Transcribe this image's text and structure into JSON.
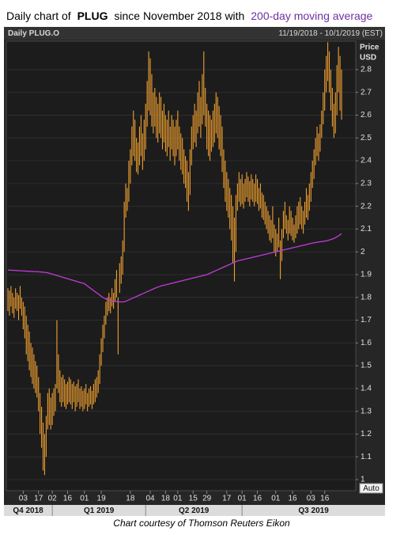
{
  "chart_data": {
    "type": "hilo",
    "title": {
      "lead": "Daily chart of",
      "ticker": "PLUG",
      "middle": "since November 2018 with",
      "highlight": "200-day moving average"
    },
    "title_highlight_color": "#7030a0",
    "header_left": "Daily PLUG.O",
    "header_right": "11/19/2018 - 10/1/2019 (EST)",
    "y_label": "Price",
    "y_unit": "USD",
    "button": "Auto",
    "quarters": [
      "Q4 2018",
      "Q1 2019",
      "Q2 2019",
      "Q3 2019"
    ],
    "footer": "Chart courtesy of Thomson Reuters Eikon",
    "bar_color": "#f0a030",
    "ma_color": "#c03cd8",
    "grid": true,
    "ylim": [
      1,
      2.925
    ],
    "yticks": [
      1,
      1.1,
      1.2,
      1.3,
      1.4,
      1.5,
      1.6,
      1.7,
      1.8,
      1.9,
      2,
      2.1,
      2.2,
      2.3,
      2.4,
      2.5,
      2.6,
      2.7,
      2.8
    ],
    "categories": [
      null,
      null,
      null,
      null,
      null,
      null,
      null,
      null,
      null,
      null,
      "03",
      null,
      null,
      null,
      null,
      null,
      null,
      null,
      null,
      null,
      "17",
      null,
      null,
      null,
      null,
      null,
      null,
      null,
      null,
      "02",
      null,
      null,
      null,
      null,
      null,
      null,
      null,
      null,
      null,
      "16",
      null,
      null,
      null,
      null,
      null,
      null,
      null,
      null,
      null,
      null,
      "01",
      null,
      null,
      null,
      null,
      null,
      null,
      null,
      null,
      null,
      null,
      "19",
      null,
      null,
      null,
      null,
      null,
      null,
      null,
      null,
      null,
      null,
      null,
      null,
      null,
      null,
      null,
      null,
      null,
      null,
      "18",
      null,
      null,
      null,
      null,
      null,
      null,
      null,
      null,
      null,
      null,
      null,
      null,
      "04",
      null,
      null,
      null,
      null,
      null,
      null,
      null,
      null,
      null,
      "18",
      null,
      null,
      null,
      null,
      null,
      null,
      null,
      "01",
      null,
      null,
      null,
      null,
      null,
      null,
      null,
      null,
      null,
      "15",
      null,
      null,
      null,
      null,
      null,
      null,
      null,
      null,
      "29",
      null,
      null,
      null,
      null,
      null,
      null,
      null,
      null,
      null,
      null,
      null,
      null,
      "17",
      null,
      null,
      null,
      null,
      null,
      null,
      null,
      null,
      null,
      "01",
      null,
      null,
      null,
      null,
      null,
      null,
      null,
      null,
      null,
      "16",
      null,
      null,
      null,
      null,
      null,
      null,
      null,
      null,
      null,
      null,
      null,
      "01",
      null,
      null,
      null,
      null,
      null,
      null,
      null,
      null,
      null,
      null,
      "16",
      null,
      null,
      null,
      null,
      null,
      null,
      null,
      null,
      null,
      null,
      null,
      "03",
      null,
      null,
      null,
      null,
      null,
      null,
      null,
      null,
      "16",
      null,
      null,
      null,
      null,
      null,
      null,
      null,
      null,
      null,
      null,
      null
    ],
    "high": [
      1.84,
      1.83,
      1.85,
      1.82,
      1.8,
      1.84,
      1.82,
      1.81,
      1.85,
      1.8,
      1.78,
      1.76,
      1.72,
      1.68,
      1.65,
      1.6,
      1.58,
      1.55,
      1.52,
      1.5,
      1.45,
      1.38,
      1.32,
      1.25,
      1.2,
      1.28,
      1.38,
      1.4,
      1.36,
      1.38,
      1.4,
      1.42,
      1.7,
      1.55,
      1.48,
      1.45,
      1.46,
      1.44,
      1.42,
      1.43,
      1.45,
      1.44,
      1.42,
      1.43,
      1.41,
      1.42,
      1.44,
      1.4,
      1.41,
      1.39,
      1.4,
      1.42,
      1.38,
      1.4,
      1.41,
      1.39,
      1.42,
      1.44,
      1.45,
      1.48,
      1.55,
      1.62,
      1.68,
      1.72,
      1.78,
      1.8,
      1.82,
      1.8,
      1.84,
      1.82,
      1.88,
      1.92,
      1.8,
      1.95,
      1.98,
      2.05,
      2.22,
      2.3,
      2.28,
      2.4,
      2.45,
      2.55,
      2.62,
      2.58,
      2.5,
      2.48,
      2.55,
      2.6,
      2.52,
      2.58,
      2.65,
      2.75,
      2.88,
      2.85,
      2.78,
      2.7,
      2.72,
      2.68,
      2.65,
      2.7,
      2.68,
      2.62,
      2.65,
      2.6,
      2.58,
      2.62,
      2.55,
      2.6,
      2.58,
      2.55,
      2.58,
      2.62,
      2.55,
      2.52,
      2.5,
      2.45,
      2.42,
      2.4,
      2.35,
      2.45,
      2.55,
      2.6,
      2.65,
      2.62,
      2.7,
      2.75,
      2.68,
      2.78,
      2.88,
      2.72,
      2.65,
      2.62,
      2.6,
      2.58,
      2.62,
      2.65,
      2.7,
      2.68,
      2.64,
      2.6,
      2.55,
      2.45,
      2.4,
      2.35,
      2.32,
      2.28,
      2.25,
      2.2,
      2.15,
      2.25,
      2.3,
      2.35,
      2.32,
      2.34,
      2.3,
      2.32,
      2.35,
      2.33,
      2.31,
      2.34,
      2.32,
      2.3,
      2.34,
      2.32,
      2.28,
      2.3,
      2.26,
      2.25,
      2.22,
      2.2,
      2.18,
      2.16,
      2.14,
      2.2,
      2.12,
      2.1,
      2.08,
      2.15,
      2.05,
      2.1,
      2.18,
      2.22,
      2.16,
      2.14,
      2.2,
      2.18,
      2.15,
      2.12,
      2.16,
      2.2,
      2.22,
      2.24,
      2.2,
      2.18,
      2.22,
      2.28,
      2.25,
      2.3,
      2.35,
      2.4,
      2.45,
      2.5,
      2.55,
      2.52,
      2.56,
      2.62,
      2.7,
      2.8,
      2.86,
      2.92,
      2.88,
      2.8,
      2.72,
      2.65,
      2.7,
      2.82,
      2.9,
      2.86,
      2.8
    ],
    "low": [
      1.74,
      1.72,
      1.76,
      1.73,
      1.71,
      1.75,
      1.74,
      1.7,
      1.75,
      1.72,
      1.66,
      1.62,
      1.55,
      1.52,
      1.48,
      1.45,
      1.42,
      1.4,
      1.38,
      1.36,
      1.3,
      1.2,
      1.14,
      1.04,
      1.02,
      1.1,
      1.22,
      1.24,
      1.22,
      1.24,
      1.28,
      1.3,
      1.4,
      1.38,
      1.34,
      1.32,
      1.34,
      1.32,
      1.31,
      1.33,
      1.34,
      1.33,
      1.31,
      1.34,
      1.3,
      1.32,
      1.34,
      1.31,
      1.32,
      1.3,
      1.31,
      1.33,
      1.3,
      1.32,
      1.33,
      1.31,
      1.33,
      1.34,
      1.36,
      1.38,
      1.42,
      1.5,
      1.56,
      1.62,
      1.68,
      1.72,
      1.74,
      1.73,
      1.76,
      1.75,
      1.78,
      1.8,
      1.55,
      1.82,
      1.86,
      1.9,
      2.0,
      2.15,
      2.18,
      2.22,
      2.3,
      2.38,
      2.42,
      2.4,
      2.35,
      2.34,
      2.38,
      2.42,
      2.36,
      2.4,
      2.45,
      2.55,
      2.62,
      2.6,
      2.55,
      2.52,
      2.55,
      2.5,
      2.48,
      2.52,
      2.5,
      2.45,
      2.48,
      2.44,
      2.42,
      2.46,
      2.4,
      2.45,
      2.42,
      2.38,
      2.42,
      2.45,
      2.4,
      2.36,
      2.34,
      2.3,
      2.28,
      2.22,
      2.18,
      2.25,
      2.38,
      2.45,
      2.48,
      2.46,
      2.52,
      2.55,
      2.5,
      2.56,
      2.6,
      2.55,
      2.45,
      2.42,
      2.4,
      2.44,
      2.46,
      2.48,
      2.52,
      2.5,
      2.45,
      2.42,
      2.35,
      2.28,
      2.22,
      2.18,
      2.15,
      2.1,
      2.05,
      1.95,
      1.87,
      2.0,
      2.18,
      2.22,
      2.2,
      2.21,
      2.19,
      2.22,
      2.24,
      2.22,
      2.2,
      2.23,
      2.22,
      2.2,
      2.22,
      2.21,
      2.18,
      2.19,
      2.15,
      2.14,
      2.12,
      2.1,
      2.08,
      2.05,
      2.04,
      2.06,
      2.0,
      1.98,
      2.0,
      2.02,
      1.88,
      1.96,
      2.06,
      2.1,
      2.08,
      2.05,
      2.08,
      2.07,
      2.05,
      2.04,
      2.06,
      2.08,
      2.1,
      2.12,
      2.1,
      2.08,
      2.12,
      2.15,
      2.14,
      2.18,
      2.22,
      2.28,
      2.32,
      2.38,
      2.42,
      2.4,
      2.44,
      2.5,
      2.56,
      2.62,
      2.7,
      2.75,
      2.7,
      2.62,
      2.55,
      2.5,
      2.52,
      2.6,
      2.7,
      2.62,
      2.58
    ],
    "ma": [
      1.92,
      1.92,
      1.919,
      1.919,
      1.919,
      1.918,
      1.918,
      1.917,
      1.917,
      1.917,
      1.916,
      1.916,
      1.915,
      1.915,
      1.915,
      1.914,
      1.914,
      1.913,
      1.913,
      1.913,
      1.912,
      1.912,
      1.911,
      1.911,
      1.91,
      1.909,
      1.908,
      1.906,
      1.904,
      1.902,
      1.9,
      1.898,
      1.896,
      1.894,
      1.892,
      1.89,
      1.888,
      1.886,
      1.884,
      1.882,
      1.88,
      1.878,
      1.876,
      1.874,
      1.872,
      1.87,
      1.868,
      1.866,
      1.864,
      1.862,
      1.86,
      1.855,
      1.85,
      1.845,
      1.84,
      1.835,
      1.83,
      1.825,
      1.82,
      1.815,
      1.81,
      1.805,
      1.8,
      1.796,
      1.793,
      1.79,
      1.788,
      1.786,
      1.785,
      1.784,
      1.783,
      1.782,
      1.781,
      1.78,
      1.78,
      1.78,
      1.781,
      1.783,
      1.786,
      1.789,
      1.792,
      1.795,
      1.798,
      1.801,
      1.804,
      1.807,
      1.81,
      1.813,
      1.816,
      1.819,
      1.822,
      1.825,
      1.828,
      1.831,
      1.834,
      1.837,
      1.84,
      1.843,
      1.845,
      1.848,
      1.85,
      1.852,
      1.853,
      1.855,
      1.857,
      1.858,
      1.86,
      1.862,
      1.863,
      1.865,
      1.867,
      1.868,
      1.87,
      1.872,
      1.873,
      1.875,
      1.877,
      1.878,
      1.88,
      1.882,
      1.883,
      1.885,
      1.887,
      1.888,
      1.89,
      1.892,
      1.893,
      1.895,
      1.897,
      1.898,
      1.9,
      1.903,
      1.906,
      1.909,
      1.912,
      1.915,
      1.918,
      1.921,
      1.924,
      1.927,
      1.93,
      1.933,
      1.936,
      1.939,
      1.942,
      1.945,
      1.948,
      1.951,
      1.954,
      1.957,
      1.96,
      1.962,
      1.963,
      1.965,
      1.966,
      1.968,
      1.97,
      1.971,
      1.973,
      1.974,
      1.976,
      1.978,
      1.979,
      1.981,
      1.982,
      1.984,
      1.986,
      1.987,
      1.989,
      1.99,
      1.992,
      1.994,
      1.995,
      1.997,
      1.998,
      2.0,
      2.002,
      2.003,
      2.005,
      2.006,
      2.008,
      2.01,
      2.011,
      2.013,
      2.014,
      2.016,
      2.018,
      2.019,
      2.021,
      2.022,
      2.024,
      2.026,
      2.027,
      2.029,
      2.03,
      2.032,
      2.034,
      2.035,
      2.037,
      2.038,
      2.04,
      2.041,
      2.042,
      2.043,
      2.044,
      2.045,
      2.046,
      2.047,
      2.048,
      2.05,
      2.052,
      2.054,
      2.056,
      2.059,
      2.062,
      2.066,
      2.07,
      2.075,
      2.08
    ]
  }
}
